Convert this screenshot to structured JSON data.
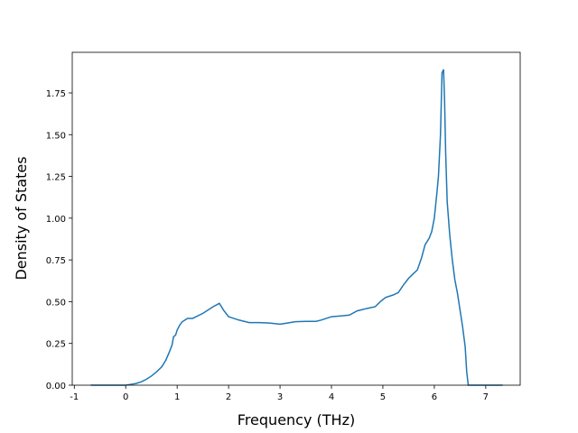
{
  "chart_data": {
    "type": "line",
    "x_label": "Frequency (THz)",
    "y_label": "Density of States",
    "series": [
      {
        "color": "#1f77b4",
        "x": [
          -0.68,
          0,
          0.1,
          0.2,
          0.3,
          0.4,
          0.5,
          0.6,
          0.7,
          0.78,
          0.85,
          0.9,
          0.93,
          0.97,
          1.0,
          1.05,
          1.1,
          1.2,
          1.3,
          1.5,
          1.7,
          1.82,
          1.9,
          2.0,
          2.2,
          2.4,
          2.6,
          2.8,
          3.0,
          3.1,
          3.3,
          3.5,
          3.7,
          3.8,
          3.9,
          4.0,
          4.2,
          4.35,
          4.5,
          4.7,
          4.85,
          4.95,
          5.05,
          5.2,
          5.3,
          5.4,
          5.5,
          5.6,
          5.67,
          5.75,
          5.82,
          5.9,
          5.95,
          6.0,
          6.05,
          6.08,
          6.12,
          6.15,
          6.18,
          6.2,
          6.22,
          6.25,
          6.3,
          6.35,
          6.4,
          6.45,
          6.5,
          6.55,
          6.6,
          6.63,
          6.66,
          7.33
        ],
        "values": [
          0,
          0,
          0.005,
          0.01,
          0.02,
          0.035,
          0.055,
          0.08,
          0.11,
          0.15,
          0.2,
          0.24,
          0.29,
          0.3,
          0.33,
          0.36,
          0.38,
          0.4,
          0.4,
          0.43,
          0.47,
          0.49,
          0.45,
          0.41,
          0.39,
          0.375,
          0.375,
          0.372,
          0.365,
          0.37,
          0.38,
          0.382,
          0.382,
          0.39,
          0.4,
          0.41,
          0.415,
          0.42,
          0.445,
          0.46,
          0.47,
          0.5,
          0.525,
          0.54,
          0.555,
          0.6,
          0.64,
          0.67,
          0.69,
          0.76,
          0.84,
          0.88,
          0.92,
          1.0,
          1.15,
          1.25,
          1.5,
          1.87,
          1.89,
          1.7,
          1.4,
          1.1,
          0.9,
          0.75,
          0.63,
          0.55,
          0.45,
          0.35,
          0.23,
          0.08,
          0,
          0
        ]
      }
    ],
    "xlim": [
      -1.04,
      7.67
    ],
    "ylim": [
      0,
      1.993
    ],
    "xticks": [
      -1,
      0,
      1,
      2,
      3,
      4,
      5,
      6,
      7
    ],
    "yticks": [
      {
        "value": 0,
        "label": "0.00"
      },
      {
        "value": 0.25,
        "label": "0.25"
      },
      {
        "value": 0.5,
        "label": "0.50"
      },
      {
        "value": 0.75,
        "label": "0.75"
      },
      {
        "value": 1,
        "label": "1.00"
      },
      {
        "value": 1.25,
        "label": "1.25"
      },
      {
        "value": 1.5,
        "label": "1.50"
      },
      {
        "value": 1.75,
        "label": "1.75"
      }
    ]
  }
}
